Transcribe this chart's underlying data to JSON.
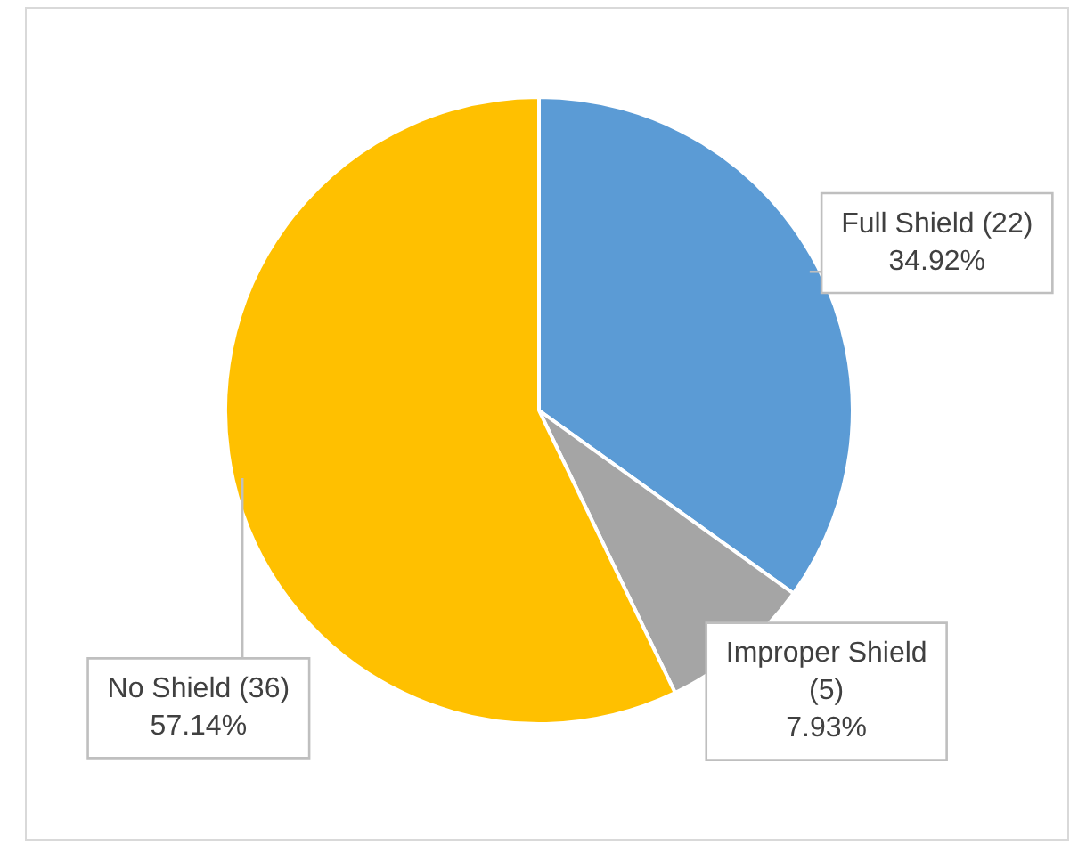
{
  "chart_data": {
    "type": "pie",
    "categories": [
      "Full Shield (22)",
      "Improper Shield (5)",
      "No Shield (36)"
    ],
    "values": [
      34.92,
      7.93,
      57.14
    ],
    "colors": [
      "#5b9bd5",
      "#a5a5a5",
      "#ffc000"
    ],
    "value_labels": [
      "34.92%",
      "7.93%",
      "57.14%"
    ],
    "legend": false
  }
}
